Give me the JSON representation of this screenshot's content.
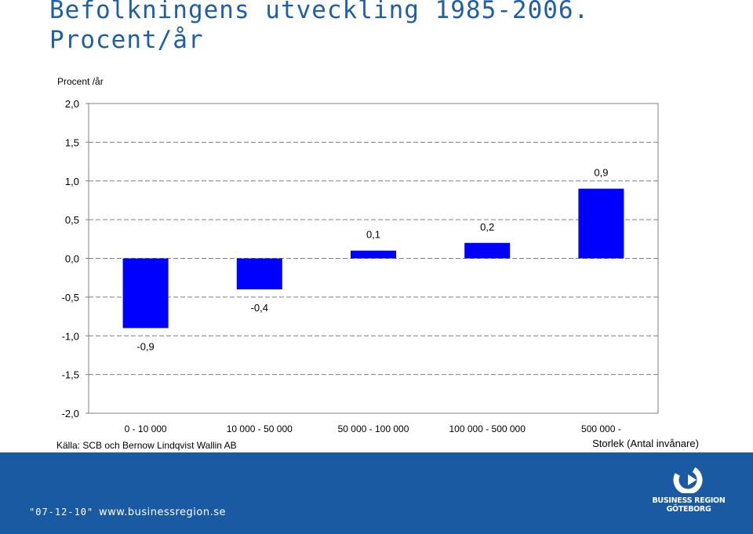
{
  "slide": {
    "title_line1": "Befolkningens utveckling 1985-2006.",
    "title_line2": "Procent/år",
    "source": "Källa: SCB och Bernow Lindqvist Wallin AB"
  },
  "footer": {
    "date": "\"07-12-10\"",
    "url": "www.businessregion.se",
    "logo_line1": "BUSINESS REGION",
    "logo_line2": "GÖTEBORG"
  },
  "chart_data": {
    "type": "bar",
    "ylabel": "Procent /år",
    "xlabel_line1": "",
    "xlabel_line2": "Storlek (Antal invånare)",
    "categories": [
      "0 - 10 000",
      "10 000 - 50 000",
      "50 000 - 100 000",
      "100 000 - 500 000",
      "500 000 -"
    ],
    "values": [
      -0.9,
      -0.4,
      0.1,
      0.2,
      0.9
    ],
    "data_labels": [
      "-0,9",
      "-0,4",
      "0,1",
      "0,2",
      "0,9"
    ],
    "ylim": [
      -2.0,
      2.0
    ],
    "yticks": [
      2.0,
      1.5,
      1.0,
      0.5,
      0.0,
      -0.5,
      -1.0,
      -1.5,
      -2.0
    ],
    "ytick_labels": [
      "2,0",
      "1,5",
      "1,0",
      "0,5",
      "0,0",
      "-0,5",
      "-1,0",
      "-1,5",
      "-2,0"
    ],
    "grid": "dashed horizontal",
    "bar_color": "#0000ff"
  }
}
